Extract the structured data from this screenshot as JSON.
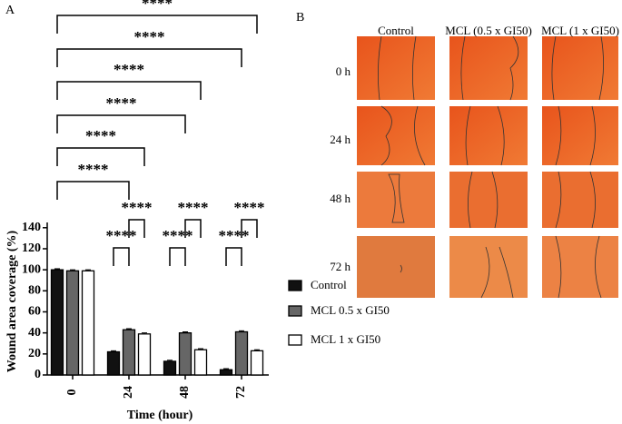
{
  "chart_data": {
    "type": "bar",
    "panel_label": "A",
    "y_label": "Wound area coverage (%)",
    "x_label": "Time (hour)",
    "categories": [
      "0",
      "24",
      "48",
      "72"
    ],
    "series": [
      {
        "name": "Control",
        "color": "#111111",
        "values": [
          100,
          22,
          13,
          5
        ],
        "errors": [
          1,
          1,
          1,
          1
        ]
      },
      {
        "name": "MCL 0.5 x GI50",
        "color": "#666666",
        "values": [
          99,
          43,
          40,
          41
        ],
        "errors": [
          1,
          1,
          1,
          1
        ]
      },
      {
        "name": "MCL 1 x GI50",
        "color": "#ffffff",
        "values": [
          99,
          39,
          24,
          23
        ],
        "errors": [
          1,
          1,
          1,
          1
        ]
      }
    ],
    "ylim": [
      0,
      145
    ],
    "yticks": [
      0,
      20,
      40,
      60,
      80,
      100,
      120,
      140
    ],
    "comparisons": [
      {
        "label": "****",
        "from": {
          "category": 1,
          "series": 0
        },
        "to": {
          "category": 1,
          "series": 1
        }
      },
      {
        "label": "****",
        "from": {
          "category": 1,
          "series": 1
        },
        "to": {
          "category": 1,
          "series": 2
        }
      },
      {
        "label": "****",
        "from": {
          "category": 2,
          "series": 0
        },
        "to": {
          "category": 2,
          "series": 1
        }
      },
      {
        "label": "****",
        "from": {
          "category": 2,
          "series": 1
        },
        "to": {
          "category": 2,
          "series": 2
        }
      },
      {
        "label": "****",
        "from": {
          "category": 3,
          "series": 0
        },
        "to": {
          "category": 3,
          "series": 1
        }
      },
      {
        "label": "****",
        "from": {
          "category": 3,
          "series": 1
        },
        "to": {
          "category": 3,
          "series": 2
        }
      },
      {
        "label": "****",
        "from": {
          "category": 0,
          "series": 0
        },
        "to": {
          "category": 1,
          "series": 1
        }
      },
      {
        "label": "****",
        "from": {
          "category": 0,
          "series": 0
        },
        "to": {
          "category": 1,
          "series": 2
        }
      },
      {
        "label": "****",
        "from": {
          "category": 0,
          "series": 0
        },
        "to": {
          "category": 2,
          "series": 1
        }
      },
      {
        "label": "****",
        "from": {
          "category": 0,
          "series": 0
        },
        "to": {
          "category": 2,
          "series": 2
        }
      },
      {
        "label": "****",
        "from": {
          "category": 0,
          "series": 0
        },
        "to": {
          "category": 3,
          "series": 1
        }
      },
      {
        "label": "****",
        "from": {
          "category": 0,
          "series": 0
        },
        "to": {
          "category": 3,
          "series": 2
        }
      }
    ]
  },
  "panel_b": {
    "panel_label": "B",
    "columns": [
      "Control",
      "MCL (0.5 x GI50)",
      "MCL (1 x GI50)"
    ],
    "rows": [
      "0 h",
      "24 h",
      "48 h",
      "72 h"
    ]
  }
}
